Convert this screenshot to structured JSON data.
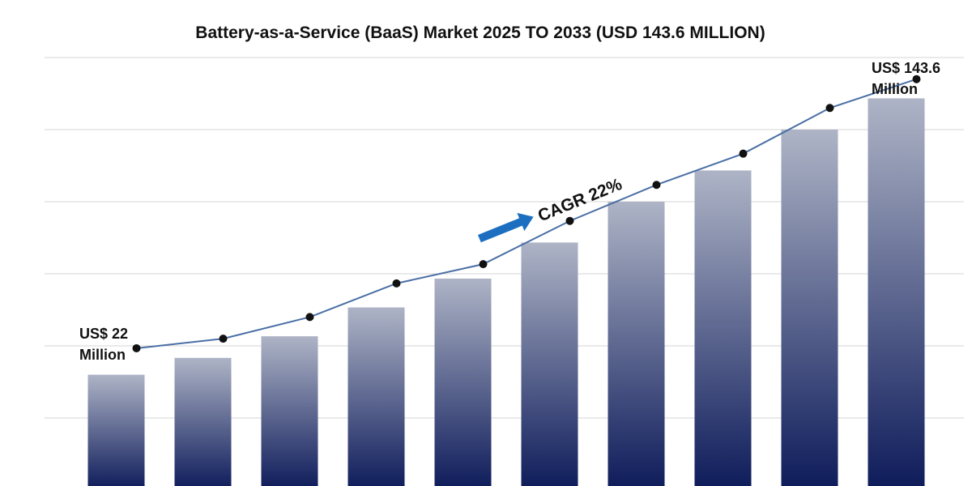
{
  "chart_data": {
    "type": "bar",
    "title": "Battery-as-a-Service (BaaS) Market 2025 TO 2033 (USD 143.6 MILLION)",
    "categories": [
      null,
      null,
      null,
      null,
      null,
      null,
      null,
      null,
      null,
      null
    ],
    "series": [
      {
        "type": "bar",
        "color": "#0d1b5a",
        "values": [
          48,
          55,
          64,
          76,
          88,
          103,
          120,
          133,
          150,
          163
        ]
      },
      {
        "type": "line",
        "color": "#4a6fa5",
        "values": [
          59,
          63,
          72,
          86,
          94,
          112,
          127,
          140,
          159,
          171
        ]
      }
    ],
    "ylim": [
      0,
      180
    ],
    "yticks": [
      30,
      60,
      90,
      120,
      150,
      180
    ],
    "grid": true,
    "annotations": {
      "start": [
        "US$ 22",
        "Million"
      ],
      "end": [
        "US$ 143.6",
        "Million"
      ],
      "cagr": "CAGR 22%"
    }
  }
}
